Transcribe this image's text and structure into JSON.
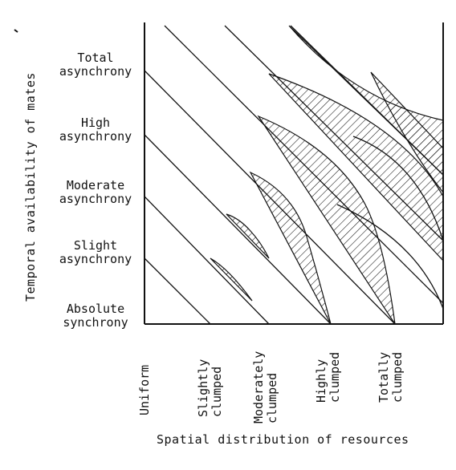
{
  "y_axis": {
    "title": "Temporal availability of mates",
    "levels": [
      [
        "Total",
        "asynchrony"
      ],
      [
        "High",
        "asynchrony"
      ],
      [
        "Moderate",
        "asynchrony"
      ],
      [
        "Slight",
        "asynchrony"
      ],
      [
        "Absolute",
        "synchrony"
      ]
    ]
  },
  "x_axis": {
    "title": "Spatial distribution of resources",
    "levels": [
      [
        "Uniform"
      ],
      [
        "Slightly",
        "clumped"
      ],
      [
        "Moderately",
        "clumped"
      ],
      [
        "Highly",
        "clumped"
      ],
      [
        "Totally",
        "clumped"
      ]
    ]
  },
  "colors": {
    "ink": "#111111",
    "background": "#ffffff"
  }
}
